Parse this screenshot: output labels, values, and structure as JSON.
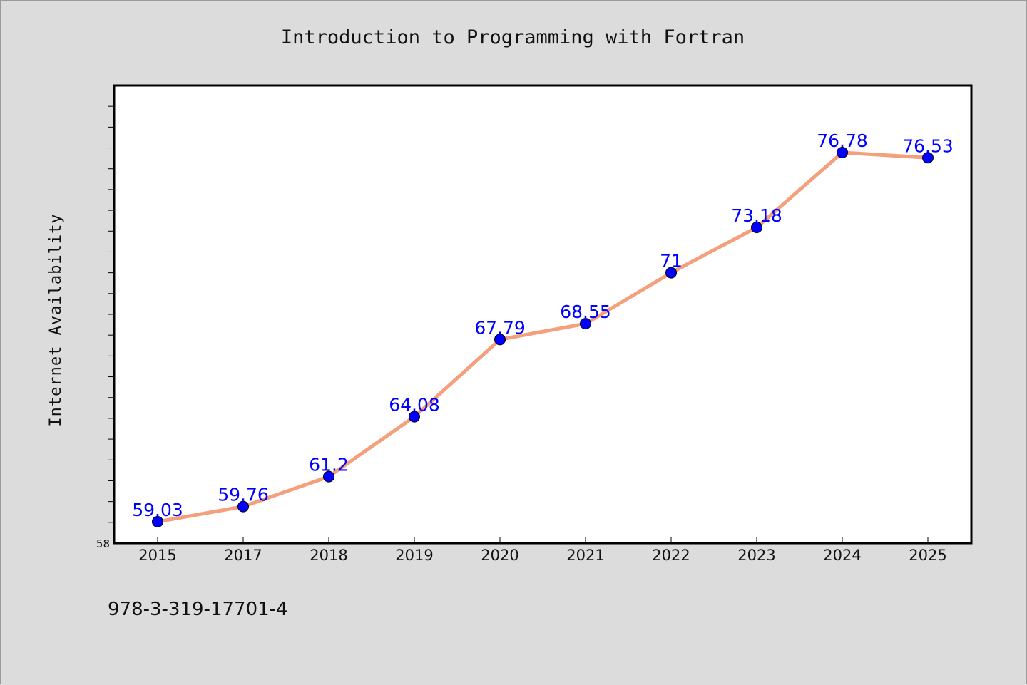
{
  "chart_data": {
    "type": "line",
    "title": "Introduction to Programming with Fortran",
    "ylabel": "Internet Availability",
    "xlabel": "",
    "categories": [
      "2015",
      "2017",
      "2018",
      "2019",
      "2020",
      "2021",
      "2022",
      "2023",
      "2024",
      "2025"
    ],
    "series": [
      {
        "values": [
          59.03,
          59.76,
          61.2,
          64.08,
          67.79,
          68.55,
          71,
          73.18,
          76.78,
          76.53
        ],
        "labels": [
          "59.03",
          "59.76",
          "61.2",
          "64.08",
          "67.79",
          "68.55",
          "71",
          "73.18",
          "76.78",
          "76.53"
        ],
        "line_color": "#f4a07c",
        "marker_color": "#0000ff"
      }
    ],
    "ylim": [
      58,
      80
    ],
    "y_tick_labels": [
      "58"
    ],
    "grid": false,
    "legend": "none",
    "footer_text": "978-3-319-17701-4"
  }
}
